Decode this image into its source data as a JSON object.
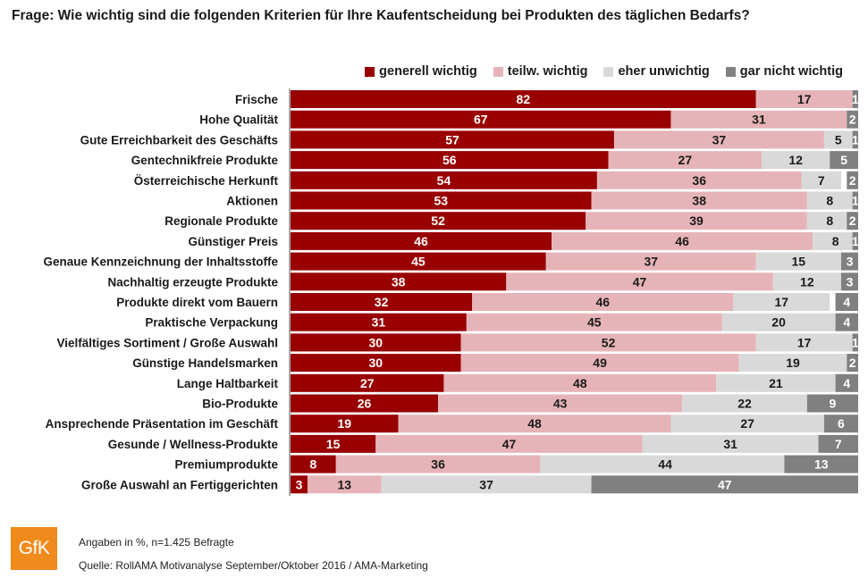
{
  "colors": {
    "generell_wichtig": "#990000",
    "teilw_wichtig": "#e6b4b8",
    "eher_unwichtig": "#d9d9d9",
    "gar_nicht_wichtig": "#808080"
  },
  "chart_data": {
    "type": "bar",
    "orientation": "horizontal",
    "stacked": true,
    "title": "Frage: Wie wichtig sind die folgenden Kriterien für Ihre Kaufentscheidung bei Produkten des täglichen Bedarfs?",
    "legend": [
      "generell wichtig",
      "teilw. wichtig",
      "eher unwichtig",
      "gar nicht wichtig"
    ],
    "legend_position": "top-right",
    "xlim": [
      0,
      100
    ],
    "unit": "%",
    "categories": [
      "Frische",
      "Hohe Qualität",
      "Gute Erreichbarkeit des Geschäfts",
      "Gentechnikfreie Produkte",
      "Österreichische Herkunft",
      "Aktionen",
      "Regionale Produkte",
      "Günstiger Preis",
      "Genaue Kennzeichnung der Inhaltsstoffe",
      "Nachhaltig erzeugte Produkte",
      "Produkte direkt vom Bauern",
      "Praktische Verpackung",
      "Vielfältiges Sortiment / Große Auswahl",
      "Günstige Handelsmarken",
      "Lange Haltbarkeit",
      "Bio-Produkte",
      "Ansprechende Präsentation im Geschäft",
      "Gesunde / Wellness-Produkte",
      "Premiumprodukte",
      "Große Auswahl an Fertiggerichten"
    ],
    "series": [
      {
        "name": "generell wichtig",
        "values": [
          82,
          67,
          57,
          56,
          54,
          53,
          52,
          46,
          45,
          38,
          32,
          31,
          30,
          30,
          27,
          26,
          19,
          15,
          8,
          3
        ]
      },
      {
        "name": "teilw. wichtig",
        "values": [
          17,
          31,
          37,
          27,
          36,
          38,
          39,
          46,
          37,
          47,
          46,
          45,
          52,
          49,
          48,
          43,
          48,
          47,
          36,
          13
        ]
      },
      {
        "name": "eher unwichtig",
        "values": [
          0,
          0,
          5,
          12,
          7,
          8,
          8,
          8,
          15,
          12,
          17,
          20,
          17,
          19,
          21,
          22,
          27,
          31,
          44,
          37
        ]
      },
      {
        "name": "gar nicht wichtig",
        "values": [
          1,
          2,
          1,
          5,
          2,
          1,
          2,
          1,
          3,
          3,
          4,
          4,
          1,
          2,
          4,
          9,
          6,
          7,
          13,
          47
        ]
      }
    ]
  },
  "footer": {
    "logo_text": "GfK",
    "note": "Angaben in %, n=1.425 Befragte",
    "source": "Quelle: RollAMA Motivanalyse September/Oktober 2016 / AMA-Marketing"
  }
}
